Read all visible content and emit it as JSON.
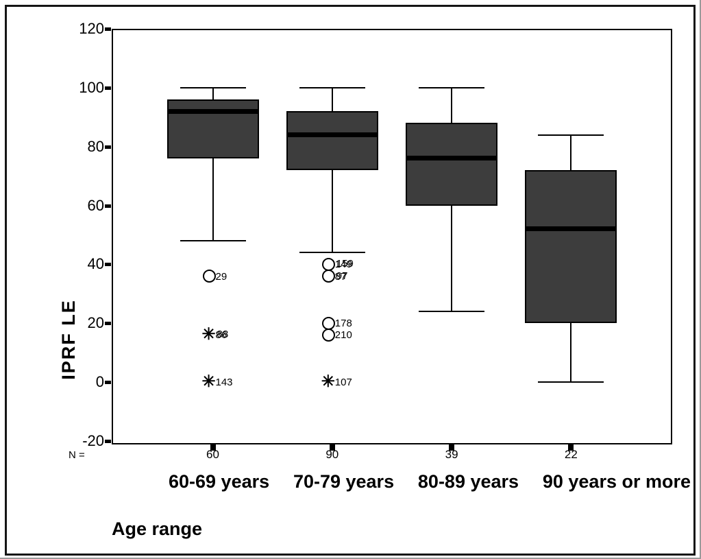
{
  "chart_data": {
    "type": "boxplot",
    "title": "",
    "xlabel": "Age range",
    "ylabel": "IPRF LE",
    "n_label": "N =",
    "ylim": [
      -20,
      120
    ],
    "yticks": [
      120,
      100,
      80,
      60,
      40,
      20,
      0,
      -20
    ],
    "grid": false,
    "legend": "none",
    "colors": {
      "box_fill": "#3d3d3d",
      "line": "#000000",
      "background": "#ffffff"
    },
    "groups": [
      {
        "category": "60-69 years",
        "n": "60",
        "whisker_high": 100,
        "q3": 96,
        "median": 92,
        "q1": 76,
        "whisker_low": 48,
        "outliers": [
          {
            "marker": "circle",
            "value": 36,
            "labels": [
              "29"
            ]
          },
          {
            "marker": "asterisk",
            "value": 16,
            "labels": [
              "86",
              "88"
            ]
          },
          {
            "marker": "asterisk",
            "value": 0,
            "labels": [
              "143"
            ]
          }
        ]
      },
      {
        "category": "70-79 years",
        "n": "90",
        "whisker_high": 100,
        "q3": 92,
        "median": 84,
        "q1": 72,
        "whisker_low": 44,
        "outliers": [
          {
            "marker": "circle",
            "value": 40,
            "labels": [
              "149",
              "159"
            ]
          },
          {
            "marker": "circle",
            "value": 36,
            "labels": [
              "87",
              "97"
            ]
          },
          {
            "marker": "circle",
            "value": 20,
            "labels": [
              "178"
            ]
          },
          {
            "marker": "circle",
            "value": 16,
            "labels": [
              "210"
            ]
          },
          {
            "marker": "asterisk",
            "value": 0,
            "labels": [
              "107"
            ]
          }
        ]
      },
      {
        "category": "80-89 years",
        "n": "39",
        "whisker_high": 100,
        "q3": 88,
        "median": 76,
        "q1": 60,
        "whisker_low": 24,
        "outliers": []
      },
      {
        "category": "90 years or more",
        "n": "22",
        "whisker_high": 84,
        "q3": 72,
        "median": 52,
        "q1": 20,
        "whisker_low": 0,
        "outliers": []
      }
    ]
  }
}
